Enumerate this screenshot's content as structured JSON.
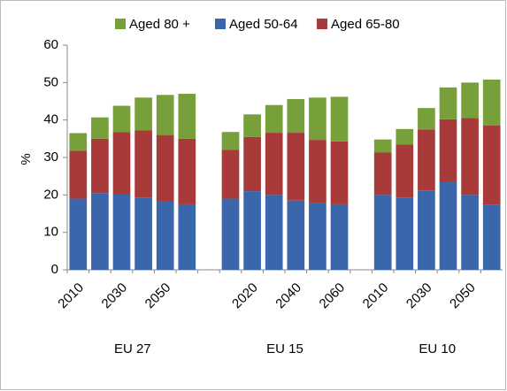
{
  "chart_data": {
    "type": "stacked_bar",
    "categories": [
      "2010",
      null,
      "2030",
      null,
      "2050",
      null,
      null,
      null,
      "2020",
      null,
      "2040",
      null,
      "2060",
      null,
      "2010",
      null,
      "2030",
      null,
      "2050",
      null
    ],
    "group_labels": [
      "EU 27",
      "EU 15",
      "EU 10"
    ],
    "y_label": "%",
    "series": [
      {
        "name": "Aged 80 +",
        "color": "#77a03a",
        "values": [
          4.7,
          5.7,
          7,
          8.8,
          10.7,
          12,
          null,
          4.8,
          6,
          7.4,
          9,
          11.3,
          11.9,
          null,
          3.5,
          4.1,
          5.7,
          8.5,
          9.5,
          12.3
        ]
      },
      {
        "name": "Aged 50-64",
        "color": "#3a67ac",
        "values": [
          19,
          20.5,
          20.2,
          19.3,
          18.2,
          17.5,
          null,
          19,
          21,
          20,
          18.5,
          17.8,
          17.5,
          null,
          20,
          19.3,
          21.2,
          23.5,
          20,
          17.3
        ]
      },
      {
        "name": "Aged 65-80",
        "color": "#a83a3a",
        "values": [
          12.8,
          14.5,
          16.6,
          17.9,
          17.8,
          17.5,
          null,
          13,
          14.5,
          16.6,
          18.1,
          16.9,
          16.8,
          null,
          11.3,
          14.2,
          16.3,
          16.7,
          20.5,
          21.2
        ]
      }
    ],
    "ylim": [
      0,
      60
    ],
    "yticks": [
      0,
      10,
      20,
      30,
      40,
      50,
      60
    ],
    "legend": "top"
  }
}
